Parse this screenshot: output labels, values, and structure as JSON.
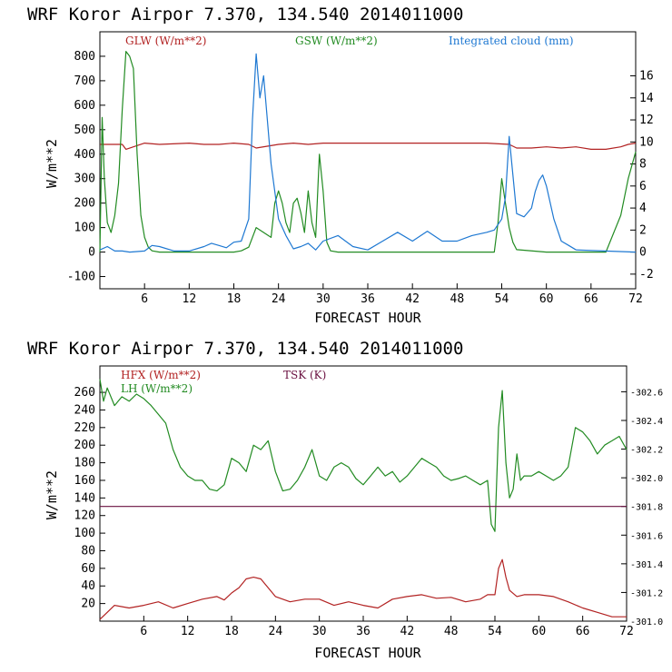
{
  "chart_data": [
    {
      "type": "line",
      "title": "WRF   Koror Airpor    7.370, 134.540  2014011000",
      "xlabel": "FORECAST HOUR",
      "ylabel": "W/m**2",
      "xlim": [
        0,
        72
      ],
      "ylim": [
        -150,
        900
      ],
      "y2lim": [
        -3.33,
        20
      ],
      "x_ticks": [
        "6",
        "12",
        "18",
        "24",
        "30",
        "36",
        "42",
        "48",
        "54",
        "60",
        "66",
        "72"
      ],
      "y_ticks": [
        "-100",
        "0",
        "100",
        "200",
        "300",
        "400",
        "500",
        "600",
        "700",
        "800"
      ],
      "y2_ticks": [
        "-2",
        "0",
        "2",
        "4",
        "6",
        "8",
        "10",
        "12",
        "14",
        "16"
      ],
      "colors": {
        "glw": "#b22222",
        "gsw": "#228b22",
        "cloud": "#1e78d2"
      },
      "series": [
        {
          "name": "GLW (W/m**2)",
          "axis": "left",
          "x": [
            0,
            3,
            3.5,
            6,
            8,
            12,
            14,
            16,
            18,
            20,
            21,
            24,
            26,
            28,
            30,
            32,
            36,
            40,
            44,
            48,
            52,
            55,
            56,
            58,
            60,
            62,
            64,
            66,
            68,
            70,
            71,
            72
          ],
          "values": [
            440,
            440,
            420,
            445,
            440,
            445,
            440,
            440,
            445,
            440,
            425,
            440,
            445,
            440,
            445,
            445,
            445,
            445,
            445,
            445,
            445,
            440,
            425,
            425,
            430,
            425,
            430,
            420,
            420,
            430,
            440,
            445
          ]
        },
        {
          "name": "GSW (W/m**2)",
          "axis": "left",
          "x": [
            0,
            0.3,
            0.6,
            1,
            1.5,
            2,
            2.5,
            3,
            3.5,
            4,
            4.5,
            5,
            5.5,
            6,
            6.5,
            7,
            8,
            12,
            18,
            19,
            20,
            21,
            22,
            23,
            23.5,
            24,
            24.5,
            25,
            25.5,
            26,
            26.5,
            27,
            27.5,
            28,
            28.5,
            29,
            29.5,
            30,
            30.5,
            31,
            32,
            36,
            42,
            48,
            53,
            53.5,
            54,
            54.5,
            55,
            55.5,
            56,
            60,
            66,
            68,
            70,
            71,
            72
          ],
          "values": [
            0,
            550,
            300,
            120,
            80,
            150,
            280,
            580,
            820,
            800,
            750,
            400,
            150,
            60,
            20,
            5,
            0,
            0,
            0,
            5,
            20,
            100,
            80,
            60,
            200,
            250,
            200,
            120,
            80,
            200,
            220,
            160,
            80,
            250,
            120,
            60,
            400,
            250,
            40,
            5,
            0,
            0,
            0,
            0,
            0,
            120,
            300,
            200,
            100,
            40,
            10,
            0,
            0,
            0,
            150,
            300,
            410
          ]
        },
        {
          "name": "Integrated cloud (mm)",
          "axis": "right",
          "x": [
            0,
            1,
            2,
            3,
            4,
            6,
            7,
            8,
            10,
            12,
            14,
            15,
            16,
            17,
            18,
            19,
            20,
            20.5,
            21,
            21.5,
            22,
            22.5,
            23,
            24,
            25,
            26,
            27,
            28,
            29,
            30,
            32,
            34,
            36,
            38,
            40,
            42,
            44,
            46,
            48,
            50,
            52,
            53,
            54,
            54.5,
            55,
            55.5,
            56,
            57,
            58,
            58.5,
            59,
            59.5,
            60,
            61,
            62,
            63,
            64,
            72
          ],
          "values": [
            0.2,
            0.5,
            0.1,
            0.1,
            0,
            0.1,
            0.6,
            0.5,
            0.1,
            0.1,
            0.5,
            0.8,
            0.6,
            0.4,
            0.9,
            1,
            3,
            12,
            18,
            14,
            16,
            12,
            8,
            3,
            1.5,
            0.3,
            0.5,
            0.8,
            0.2,
            1,
            1.5,
            0.5,
            0.2,
            1,
            1.8,
            1,
            1.9,
            1,
            1,
            1.5,
            1.8,
            2,
            3,
            5,
            10.5,
            7,
            3.5,
            3.2,
            4,
            5.5,
            6.5,
            7,
            6,
            3,
            1,
            0.6,
            0.2,
            0
          ]
        }
      ]
    },
    {
      "type": "line",
      "title": "WRF   Koror Airpor    7.370, 134.540  2014011000",
      "xlabel": "FORECAST HOUR",
      "ylabel": "W/m**2",
      "xlim": [
        0,
        72
      ],
      "ylim": [
        0,
        290
      ],
      "y2lim": [
        301,
        302.78
      ],
      "x_ticks": [
        "6",
        "12",
        "18",
        "24",
        "30",
        "36",
        "42",
        "48",
        "54",
        "60",
        "66",
        "72"
      ],
      "y_ticks": [
        "20",
        "40",
        "60",
        "80",
        "100",
        "120",
        "140",
        "160",
        "180",
        "200",
        "220",
        "240",
        "260"
      ],
      "y2_ticks": [
        "301.0",
        "301.2",
        "301.4",
        "301.6",
        "301.8",
        "302.0",
        "302.2",
        "302.4",
        "302.6"
      ],
      "colors": {
        "hfx": "#b22222",
        "lh": "#228b22",
        "tsk": "#6a1040"
      },
      "series": [
        {
          "name": "HFX (W/m**2)",
          "axis": "left",
          "x": [
            0,
            1,
            2,
            4,
            6,
            8,
            10,
            12,
            14,
            16,
            17,
            18,
            19,
            20,
            21,
            22,
            23,
            24,
            26,
            28,
            30,
            32,
            34,
            36,
            38,
            40,
            42,
            44,
            46,
            48,
            50,
            52,
            53,
            54,
            54.5,
            55,
            55.5,
            56,
            57,
            58,
            60,
            62,
            64,
            66,
            68,
            70,
            72
          ],
          "values": [
            2,
            10,
            18,
            15,
            18,
            22,
            15,
            20,
            25,
            28,
            24,
            32,
            38,
            48,
            50,
            48,
            38,
            28,
            22,
            25,
            25,
            18,
            22,
            18,
            15,
            25,
            28,
            30,
            26,
            27,
            22,
            25,
            30,
            30,
            60,
            70,
            50,
            35,
            28,
            30,
            30,
            28,
            22,
            15,
            10,
            5,
            5
          ]
        },
        {
          "name": "LH (W/m**2)",
          "axis": "left",
          "x": [
            0,
            0.5,
            1,
            2,
            3,
            4,
            5,
            6,
            7,
            8,
            9,
            10,
            11,
            12,
            13,
            14,
            15,
            16,
            17,
            18,
            19,
            20,
            21,
            22,
            23,
            24,
            25,
            26,
            27,
            28,
            29,
            30,
            31,
            32,
            33,
            34,
            35,
            36,
            37,
            38,
            39,
            40,
            41,
            42,
            43,
            44,
            45,
            46,
            47,
            48,
            49,
            50,
            51,
            52,
            53,
            53.5,
            54,
            54.5,
            55,
            55.5,
            56,
            56.5,
            57,
            57.5,
            58,
            59,
            60,
            61,
            62,
            63,
            64,
            65,
            66,
            67,
            68,
            69,
            70,
            71,
            72
          ],
          "values": [
            275,
            250,
            265,
            245,
            255,
            250,
            258,
            253,
            245,
            235,
            225,
            195,
            175,
            165,
            160,
            160,
            150,
            148,
            155,
            185,
            180,
            170,
            200,
            195,
            205,
            170,
            148,
            150,
            160,
            175,
            195,
            165,
            160,
            175,
            180,
            175,
            162,
            155,
            165,
            175,
            165,
            170,
            158,
            165,
            175,
            185,
            180,
            175,
            165,
            160,
            162,
            165,
            160,
            155,
            160,
            110,
            102,
            220,
            262,
            180,
            140,
            150,
            190,
            160,
            165,
            165,
            170,
            165,
            160,
            165,
            175,
            220,
            215,
            205,
            190,
            200,
            205,
            210,
            195
          ]
        },
        {
          "name": "TSK (K)",
          "axis": "right",
          "x": [
            0,
            72
          ],
          "values": [
            301.8,
            301.8
          ]
        }
      ]
    }
  ]
}
